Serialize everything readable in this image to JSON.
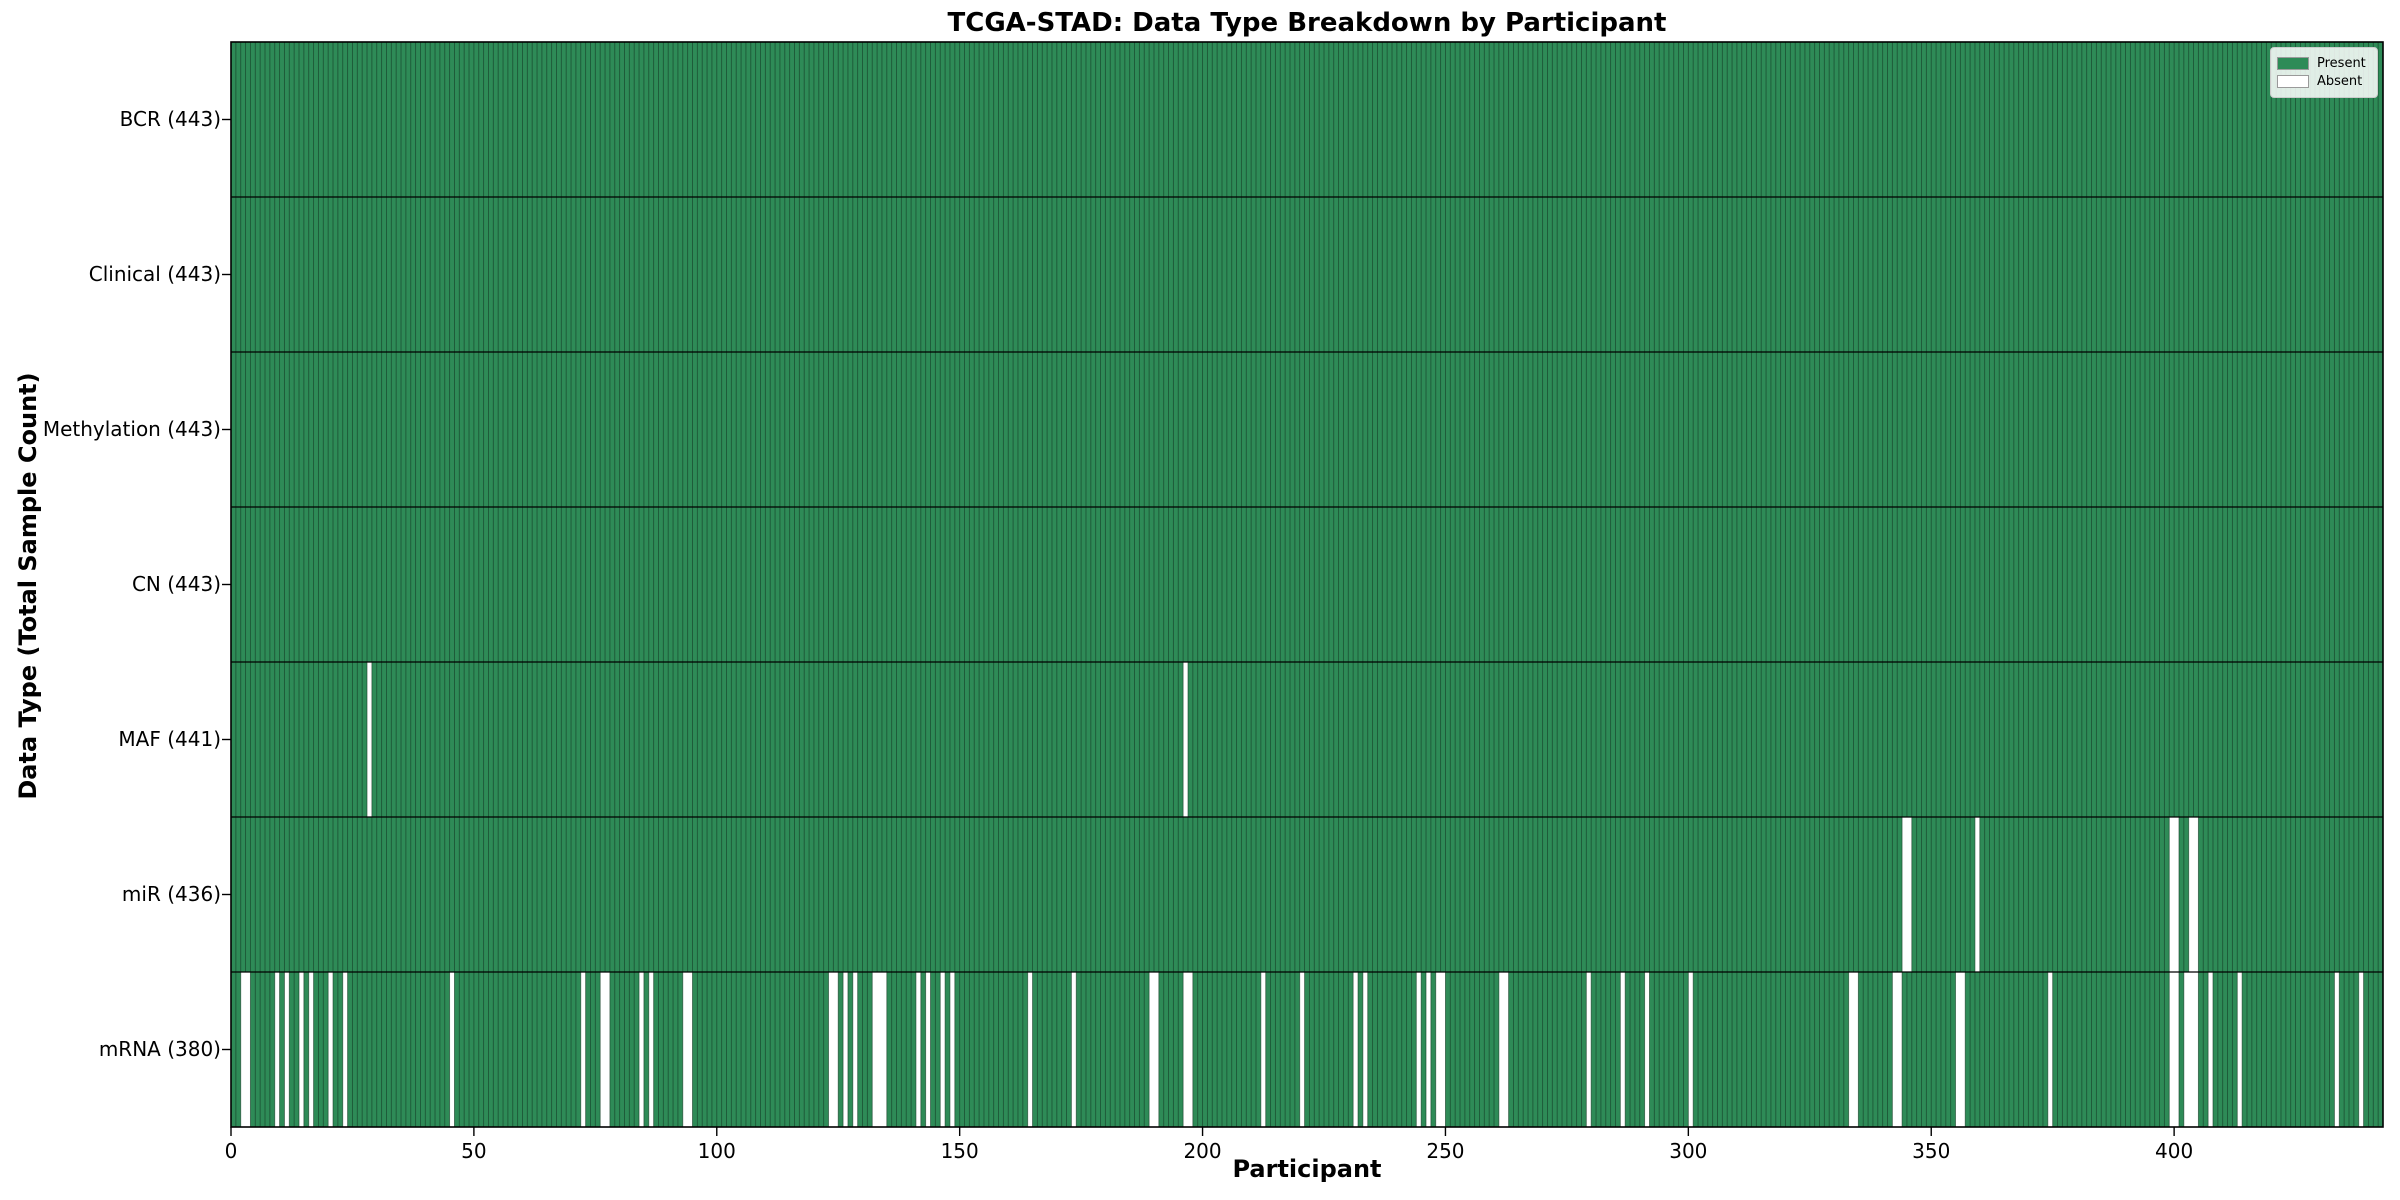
{
  "title": "TCGA-STAD: Data Type Breakdown by Participant",
  "xlabel": "Participant",
  "ylabel": "Data Type (Total Sample Count)",
  "legend": {
    "present_label": "Present",
    "absent_label": "Absent"
  },
  "colors": {
    "present": "#2E8B57",
    "absent": "#FFFFFF",
    "cell_edge": "#123522",
    "row_separator": "#000000",
    "plot_border": "#000000",
    "legend_border": "#cccccc"
  },
  "chart_data": {
    "type": "heatmap",
    "x_axis": {
      "label": "Participant",
      "min": 0,
      "max": 443,
      "ticks": [
        0,
        50,
        100,
        150,
        200,
        250,
        300,
        350,
        400
      ]
    },
    "n_participants": 443,
    "legend_entries": [
      "Present",
      "Absent"
    ],
    "rows": [
      {
        "label": "BCR (443)",
        "name": "BCR",
        "total": 443,
        "absent_participants": []
      },
      {
        "label": "Clinical (443)",
        "name": "Clinical",
        "total": 443,
        "absent_participants": []
      },
      {
        "label": "Methylation (443)",
        "name": "Methylation",
        "total": 443,
        "absent_participants": []
      },
      {
        "label": "CN (443)",
        "name": "CN",
        "total": 443,
        "absent_participants": []
      },
      {
        "label": "MAF (441)",
        "name": "MAF",
        "total": 441,
        "absent_participants": [
          28,
          196
        ]
      },
      {
        "label": "miR (436)",
        "name": "miR",
        "total": 436,
        "absent_participants": [
          344,
          345,
          359,
          399,
          400,
          403,
          404
        ]
      },
      {
        "label": "mRNA (380)",
        "name": "mRNA",
        "total": 380,
        "absent_participants": [
          2,
          3,
          9,
          11,
          14,
          16,
          20,
          23,
          45,
          72,
          76,
          77,
          84,
          86,
          93,
          94,
          123,
          124,
          126,
          128,
          132,
          133,
          134,
          141,
          143,
          146,
          148,
          164,
          173,
          189,
          190,
          196,
          197,
          212,
          220,
          231,
          233,
          244,
          246,
          248,
          249,
          261,
          262,
          279,
          286,
          291,
          300,
          333,
          334,
          342,
          343,
          355,
          356,
          374,
          399,
          400,
          402,
          403,
          404,
          407,
          413,
          433,
          438
        ]
      }
    ]
  }
}
